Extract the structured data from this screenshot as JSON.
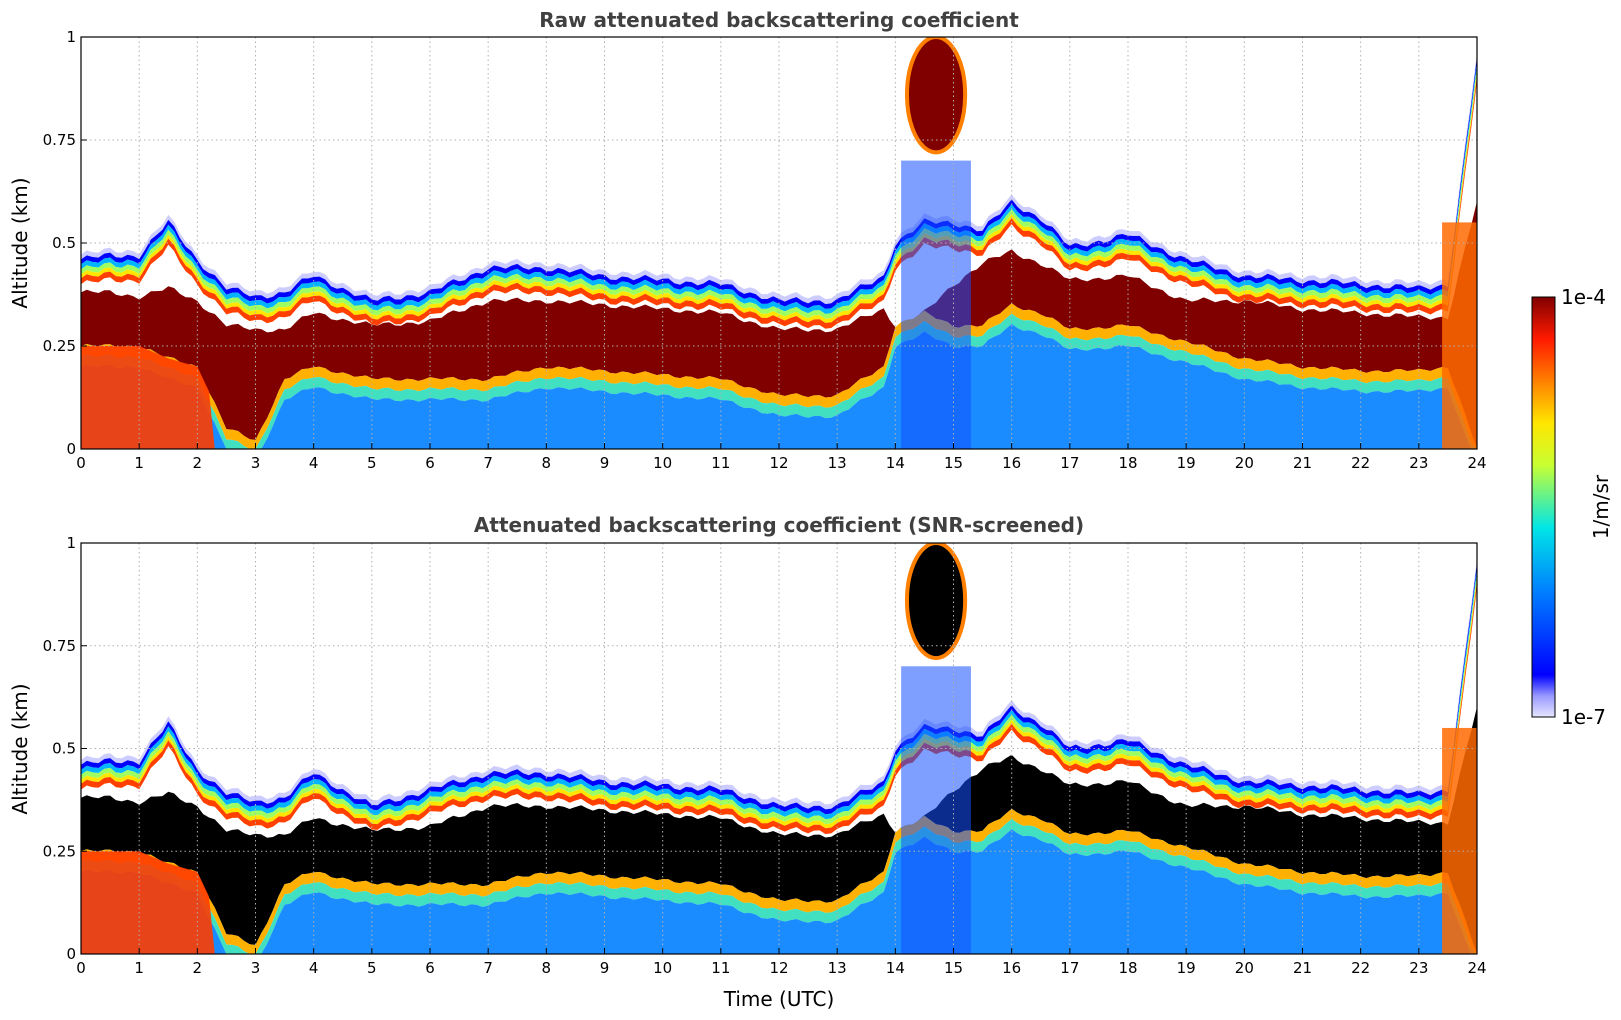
{
  "chart_data": [
    {
      "type": "heatmap",
      "title": "Raw attenuated backscattering coefficient",
      "xlabel": "",
      "ylabel": "Altitude (km)",
      "xlim": [
        0,
        24
      ],
      "ylim": [
        0,
        1
      ],
      "xticks": [
        "0",
        "1",
        "2",
        "3",
        "4",
        "5",
        "6",
        "7",
        "8",
        "9",
        "10",
        "11",
        "12",
        "13",
        "14",
        "15",
        "16",
        "17",
        "18",
        "19",
        "20",
        "21",
        "22",
        "23",
        "24"
      ],
      "yticks": [
        "0",
        "0.25",
        "0.5",
        "0.75",
        "1"
      ],
      "grid": true,
      "saturated_color": "#800000",
      "layer": {
        "time_h": [
          0,
          0.5,
          1,
          1.5,
          2,
          2.5,
          3,
          3.5,
          4,
          5,
          6,
          7,
          8,
          9,
          10,
          11,
          12,
          13,
          13.8,
          14,
          14.5,
          15,
          15.5,
          16,
          16.5,
          17,
          18,
          19,
          20,
          21,
          22,
          23,
          23.5,
          24
        ],
        "top_km": [
          0.46,
          0.47,
          0.47,
          0.55,
          0.46,
          0.39,
          0.37,
          0.38,
          0.42,
          0.36,
          0.38,
          0.44,
          0.44,
          0.42,
          0.41,
          0.4,
          0.36,
          0.36,
          0.42,
          0.5,
          0.55,
          0.55,
          0.53,
          0.6,
          0.56,
          0.49,
          0.52,
          0.46,
          0.42,
          0.41,
          0.4,
          0.39,
          0.4,
          0.95
        ],
        "core_top_km": [
          0.38,
          0.38,
          0.37,
          0.39,
          0.36,
          0.3,
          0.29,
          0.29,
          0.33,
          0.3,
          0.31,
          0.36,
          0.36,
          0.35,
          0.34,
          0.33,
          0.29,
          0.29,
          0.34,
          0.3,
          0.33,
          0.4,
          0.45,
          0.48,
          0.45,
          0.41,
          0.42,
          0.36,
          0.36,
          0.34,
          0.33,
          0.32,
          0.32,
          0.6
        ],
        "core_bottom_km": [
          0.25,
          0.25,
          0.25,
          0.22,
          0.2,
          0.05,
          0.02,
          0.17,
          0.2,
          0.17,
          0.17,
          0.17,
          0.2,
          0.19,
          0.18,
          0.17,
          0.13,
          0.13,
          0.2,
          0.3,
          0.33,
          0.3,
          0.3,
          0.35,
          0.33,
          0.29,
          0.3,
          0.26,
          0.22,
          0.2,
          0.19,
          0.19,
          0.2,
          0.0
        ]
      }
    },
    {
      "type": "heatmap",
      "title": "Attenuated backscattering coefficient (SNR-screened)",
      "xlabel": "Time (UTC)",
      "ylabel": "Altitude (km)",
      "xlim": [
        0,
        24
      ],
      "ylim": [
        0,
        1
      ],
      "xticks": [
        "0",
        "1",
        "2",
        "3",
        "4",
        "5",
        "6",
        "7",
        "8",
        "9",
        "10",
        "11",
        "12",
        "13",
        "14",
        "15",
        "16",
        "17",
        "18",
        "19",
        "20",
        "21",
        "22",
        "23",
        "24"
      ],
      "yticks": [
        "0",
        "0.25",
        "0.5",
        "0.75",
        "1"
      ],
      "grid": true,
      "saturated_color": "#000000",
      "layer": {
        "time_h": [
          0,
          0.5,
          1,
          1.5,
          2,
          2.5,
          3,
          3.5,
          4,
          5,
          6,
          7,
          8,
          9,
          10,
          11,
          12,
          13,
          13.8,
          14,
          14.5,
          15,
          15.5,
          16,
          16.5,
          17,
          18,
          19,
          20,
          21,
          22,
          23,
          23.5,
          24
        ],
        "top_km": [
          0.46,
          0.47,
          0.47,
          0.56,
          0.45,
          0.39,
          0.37,
          0.38,
          0.44,
          0.36,
          0.4,
          0.44,
          0.44,
          0.42,
          0.41,
          0.4,
          0.36,
          0.36,
          0.42,
          0.5,
          0.55,
          0.55,
          0.53,
          0.6,
          0.56,
          0.5,
          0.52,
          0.46,
          0.42,
          0.41,
          0.4,
          0.39,
          0.4,
          0.95
        ],
        "core_top_km": [
          0.38,
          0.38,
          0.37,
          0.39,
          0.36,
          0.3,
          0.29,
          0.29,
          0.33,
          0.3,
          0.31,
          0.36,
          0.36,
          0.35,
          0.34,
          0.33,
          0.29,
          0.29,
          0.34,
          0.3,
          0.33,
          0.4,
          0.45,
          0.48,
          0.45,
          0.41,
          0.42,
          0.36,
          0.36,
          0.34,
          0.33,
          0.32,
          0.32,
          0.6
        ],
        "core_bottom_km": [
          0.25,
          0.25,
          0.25,
          0.22,
          0.2,
          0.05,
          0.02,
          0.17,
          0.2,
          0.17,
          0.17,
          0.17,
          0.2,
          0.19,
          0.18,
          0.17,
          0.13,
          0.13,
          0.2,
          0.3,
          0.33,
          0.3,
          0.3,
          0.35,
          0.33,
          0.29,
          0.3,
          0.26,
          0.22,
          0.2,
          0.19,
          0.19,
          0.2,
          0.0
        ]
      }
    }
  ],
  "colorbar": {
    "label": "1/m/sr",
    "max_label": "1e-4",
    "min_label": "1e-7",
    "colormap": "jet"
  }
}
